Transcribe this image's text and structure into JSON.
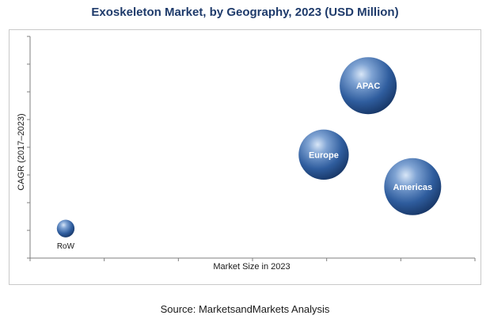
{
  "chart_data": {
    "type": "bubble",
    "title": "Exoskeleton Market, by Geography, 2023 (USD Million)",
    "xlabel": "Market Size in 2023",
    "ylabel": "CAGR (2017–2023)",
    "grid": false,
    "legend": "none",
    "series": [
      {
        "label": "APAC",
        "x": 7.6,
        "y": 7.0,
        "size": 1.0
      },
      {
        "label": "Europe",
        "x": 6.6,
        "y": 4.2,
        "size": 0.88
      },
      {
        "label": "Americas",
        "x": 8.6,
        "y": 2.9,
        "size": 1.0
      },
      {
        "label": "RoW",
        "x": 0.8,
        "y": 1.2,
        "size": 0.31
      }
    ],
    "xlim": [
      0,
      10
    ],
    "ylim": [
      0,
      9
    ],
    "bubble_color": "#2f5d9e"
  },
  "source": "Source: MarketsandMarkets Analysis"
}
